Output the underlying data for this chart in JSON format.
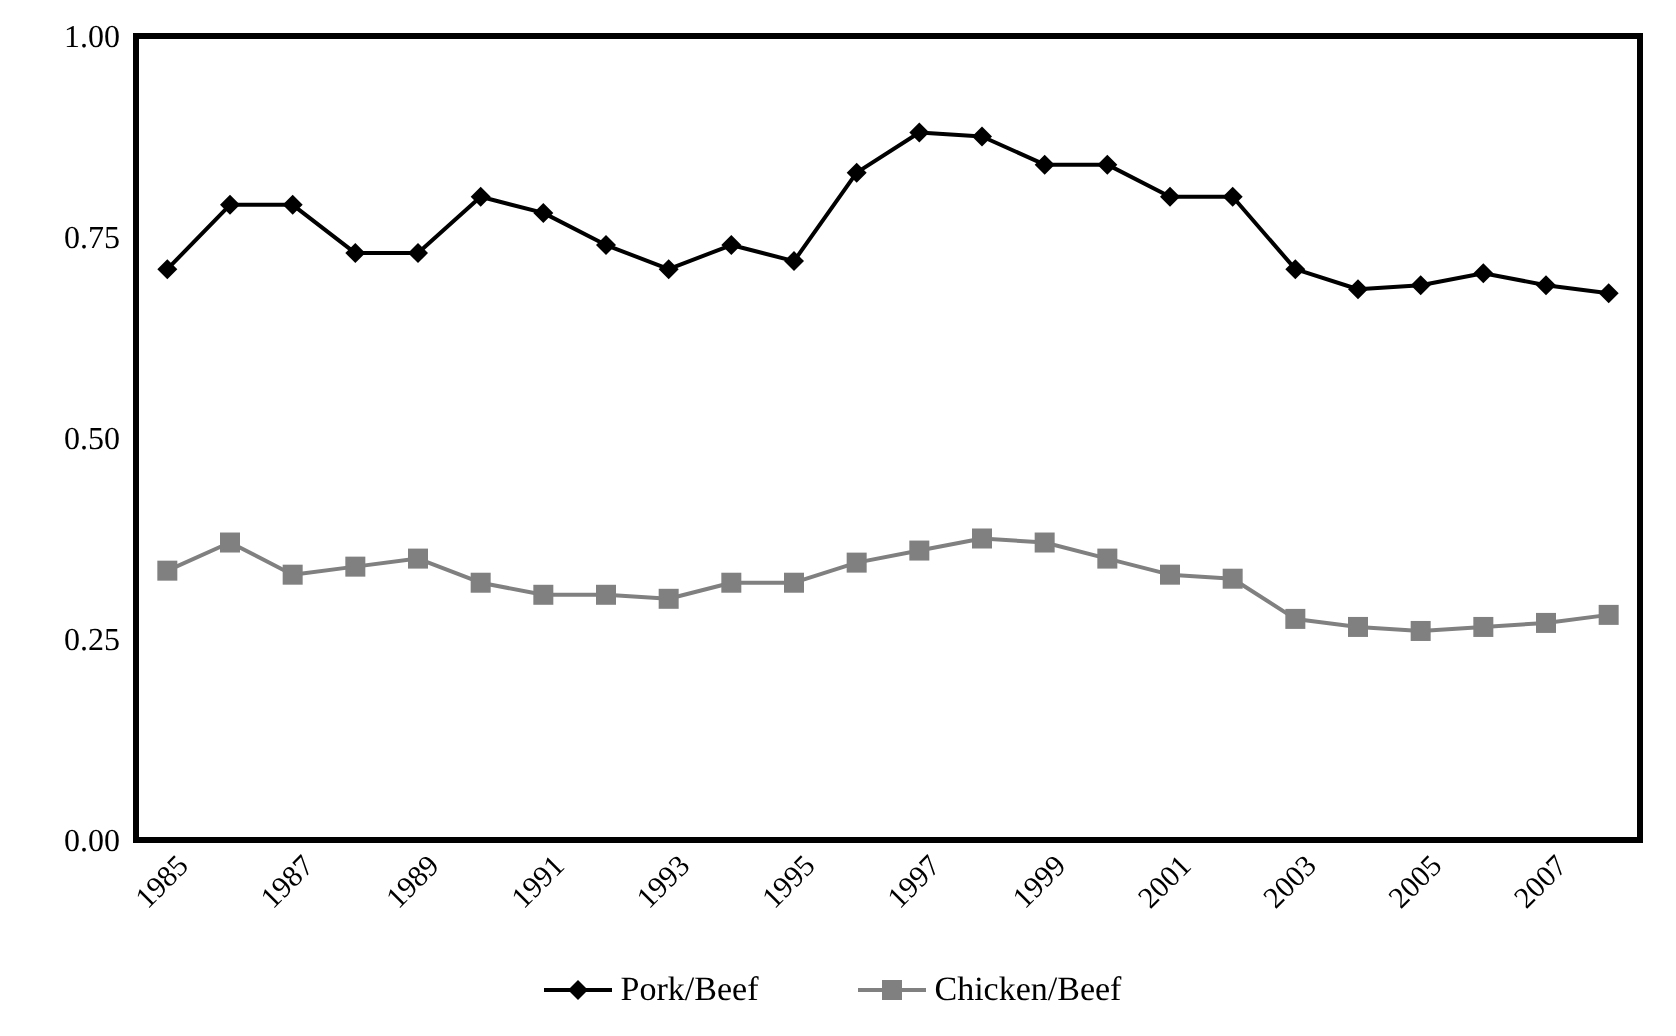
{
  "chart_data": {
    "type": "line",
    "categories": [
      "1985",
      null,
      "1987",
      null,
      "1989",
      null,
      "1991",
      null,
      "1993",
      null,
      "1995",
      null,
      "1997",
      null,
      "1999",
      null,
      "2001",
      null,
      "2003",
      null,
      "2005",
      null,
      "2007",
      null
    ],
    "series": [
      {
        "name": "Pork/Beef",
        "color": "#000000",
        "marker": "diamond",
        "values": [
          0.71,
          0.79,
          0.79,
          0.73,
          0.73,
          0.8,
          0.78,
          0.74,
          0.71,
          0.74,
          0.72,
          0.83,
          0.88,
          0.875,
          0.84,
          0.84,
          0.8,
          0.8,
          0.71,
          0.685,
          0.69,
          0.705,
          0.69,
          0.68
        ]
      },
      {
        "name": "Chicken/Beef",
        "color": "#808080",
        "marker": "square",
        "values": [
          0.335,
          0.37,
          0.33,
          0.34,
          0.35,
          0.32,
          0.305,
          0.305,
          0.3,
          0.32,
          0.32,
          0.345,
          0.36,
          0.375,
          0.37,
          0.35,
          0.33,
          0.325,
          0.275,
          0.265,
          0.26,
          0.265,
          0.27,
          0.28
        ]
      }
    ],
    "ylim": [
      0,
      1
    ],
    "yticks": [
      {
        "value": 0,
        "label": "0.00"
      },
      {
        "value": 0.25,
        "label": "0.25"
      },
      {
        "value": 0.5,
        "label": "0.50"
      },
      {
        "value": 0.75,
        "label": "0.75"
      },
      {
        "value": 1,
        "label": "1.00"
      }
    ],
    "legend": "bottom",
    "line_style": "solid"
  }
}
